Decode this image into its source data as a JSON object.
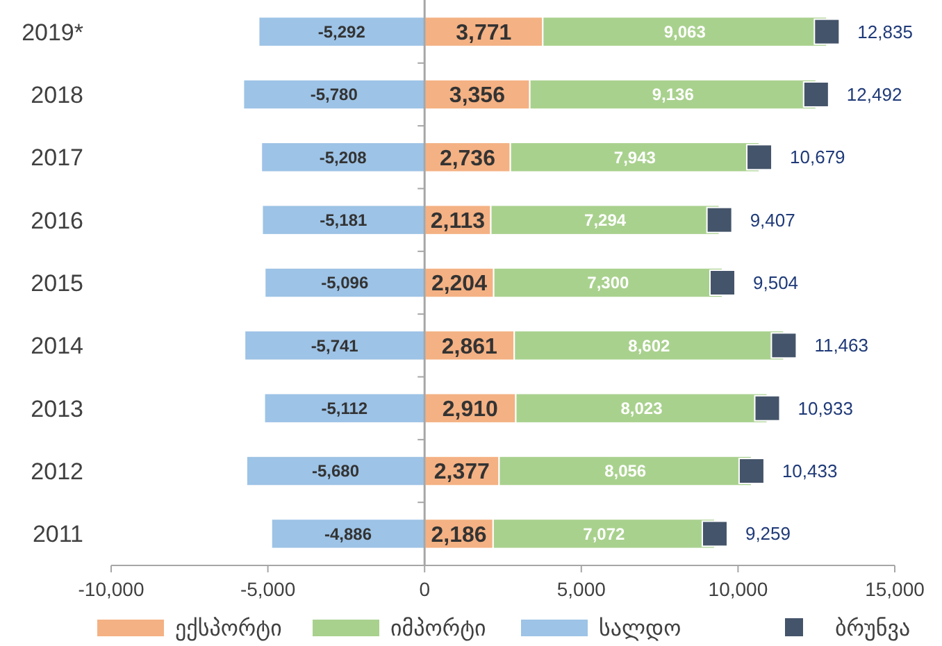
{
  "chart_data": {
    "type": "bar",
    "orientation": "horizontal",
    "stacked": true,
    "categories": [
      "2019*",
      "2018",
      "2017",
      "2016",
      "2015",
      "2014",
      "2013",
      "2012",
      "2011"
    ],
    "series": [
      {
        "name": "ექსპორტი",
        "color": "#f4b183",
        "values": [
          3771,
          3356,
          2736,
          2113,
          2204,
          2861,
          2910,
          2377,
          2186
        ],
        "value_labels": [
          "3,771",
          "3,356",
          "2,736",
          "2,113",
          "2,204",
          "2,861",
          "2,910",
          "2,377",
          "2,186"
        ]
      },
      {
        "name": "იმპორტი",
        "color": "#a9d18e",
        "values": [
          9063,
          9136,
          7943,
          7294,
          7300,
          8602,
          8023,
          8056,
          7072
        ],
        "value_labels": [
          "9,063",
          "9,136",
          "7,943",
          "7,294",
          "7,300",
          "8,602",
          "8,023",
          "8,056",
          "7,072"
        ]
      },
      {
        "name": "სალდო",
        "color": "#9dc3e6",
        "values": [
          -5292,
          -5780,
          -5208,
          -5181,
          -5096,
          -5741,
          -5112,
          -5680,
          -4886
        ],
        "value_labels": [
          "-5,292",
          "-5,780",
          "-5,208",
          "-5,181",
          "-5,096",
          "-5,741",
          "-5,112",
          "-5,680",
          "-4,886"
        ]
      },
      {
        "name": "ბრუნვა",
        "type": "scatter",
        "marker": "square",
        "color": "#44546a",
        "values": [
          12835,
          12492,
          10679,
          9407,
          9504,
          11463,
          10933,
          10433,
          9259
        ],
        "value_labels": [
          "12,835",
          "12,492",
          "10,679",
          "9,407",
          "9,504",
          "11,463",
          "10,933",
          "10,433",
          "9,259"
        ]
      }
    ],
    "xlim": [
      -10000,
      15000
    ],
    "xticks": [
      {
        "value": -10000,
        "label": "-10,000"
      },
      {
        "value": -5000,
        "label": "-5,000"
      },
      0,
      {
        "value": 5000,
        "label": "5,000"
      },
      {
        "value": 10000,
        "label": "10,000"
      },
      {
        "value": 15000,
        "label": "15,000"
      }
    ],
    "legend": "bottom"
  }
}
